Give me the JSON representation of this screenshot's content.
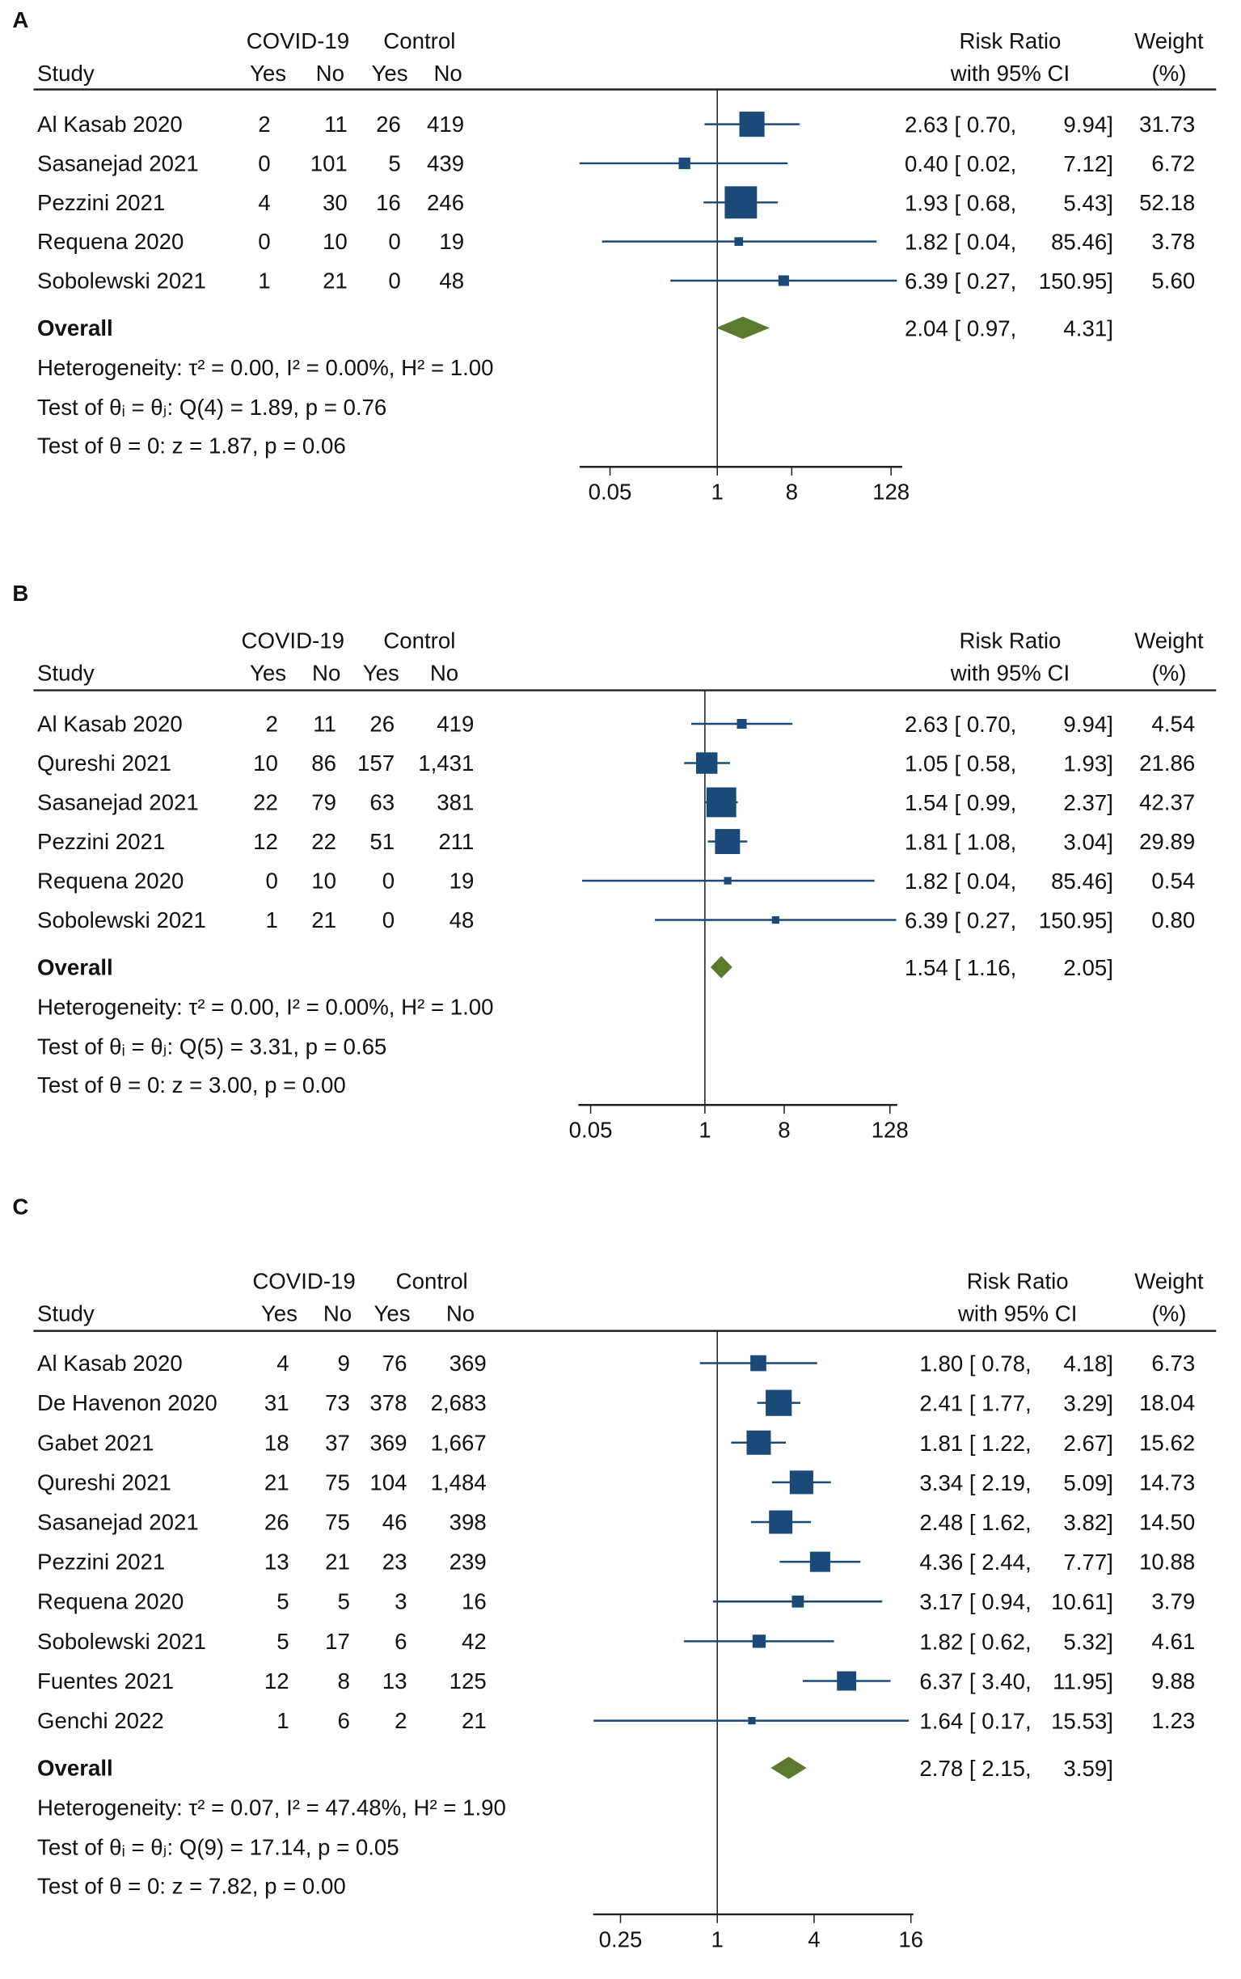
{
  "chart_data": [
    {
      "type": "forest",
      "panel_label": "A",
      "header": {
        "group1": "COVID-19",
        "group2": "Control",
        "study": "Study",
        "yes": "Yes",
        "no": "No",
        "rr1": "Risk Ratio",
        "rr2": "with 95% CI",
        "w1": "Weight",
        "w2": "(%)"
      },
      "studies": [
        {
          "name": "Al Kasab 2020",
          "cells": [
            "2",
            "11",
            "26",
            "419"
          ],
          "rr": "2.63",
          "lo": "0.70",
          "hi": "9.94",
          "weight": "31.73"
        },
        {
          "name": "Sasanejad 2021",
          "cells": [
            "0",
            "101",
            "5",
            "439"
          ],
          "rr": "0.40",
          "lo": "0.02",
          "hi": "7.12",
          "weight": "6.72"
        },
        {
          "name": "Pezzini 2021",
          "cells": [
            "4",
            "30",
            "16",
            "246"
          ],
          "rr": "1.93",
          "lo": "0.68",
          "hi": "5.43",
          "weight": "52.18"
        },
        {
          "name": "Requena 2020",
          "cells": [
            "0",
            "10",
            "0",
            "19"
          ],
          "rr": "1.82",
          "lo": "0.04",
          "hi": "85.46",
          "weight": "3.78"
        },
        {
          "name": "Sobolewski 2021",
          "cells": [
            "1",
            "21",
            "0",
            "48"
          ],
          "rr": "6.39",
          "lo": "0.27",
          "hi": "150.95",
          "weight": "5.60"
        }
      ],
      "overall": {
        "label": "Overall",
        "rr": "2.04",
        "lo": "0.97",
        "hi": "4.31"
      },
      "heterogeneity": "Heterogeneity: τ² = 0.00, I² = 0.00%, H² = 1.00",
      "test_homogeneity": "Test of θᵢ = θⱼ: Q(4) = 1.89, p = 0.76",
      "test_effect": "Test of θ = 0: z = 1.87, p = 0.06",
      "x_scale": "log",
      "x_ticks": [
        "0.05",
        "1",
        "8",
        "128"
      ]
    },
    {
      "type": "forest",
      "panel_label": "B",
      "header": {
        "group1": "COVID-19",
        "group2": "Control",
        "study": "Study",
        "yes": "Yes",
        "no": "No",
        "rr1": "Risk Ratio",
        "rr2": "with 95% CI",
        "w1": "Weight",
        "w2": "(%)"
      },
      "studies": [
        {
          "name": "Al Kasab 2020",
          "cells": [
            "2",
            "11",
            "26",
            "419"
          ],
          "rr": "2.63",
          "lo": "0.70",
          "hi": "9.94",
          "weight": "4.54"
        },
        {
          "name": "Qureshi 2021",
          "cells": [
            "10",
            "86",
            "157",
            "1,431"
          ],
          "rr": "1.05",
          "lo": "0.58",
          "hi": "1.93",
          "weight": "21.86"
        },
        {
          "name": "Sasanejad 2021",
          "cells": [
            "22",
            "79",
            "63",
            "381"
          ],
          "rr": "1.54",
          "lo": "0.99",
          "hi": "2.37",
          "weight": "42.37"
        },
        {
          "name": "Pezzini 2021",
          "cells": [
            "12",
            "22",
            "51",
            "211"
          ],
          "rr": "1.81",
          "lo": "1.08",
          "hi": "3.04",
          "weight": "29.89"
        },
        {
          "name": "Requena 2020",
          "cells": [
            "0",
            "10",
            "0",
            "19"
          ],
          "rr": "1.82",
          "lo": "0.04",
          "hi": "85.46",
          "weight": "0.54"
        },
        {
          "name": "Sobolewski 2021",
          "cells": [
            "1",
            "21",
            "0",
            "48"
          ],
          "rr": "6.39",
          "lo": "0.27",
          "hi": "150.95",
          "weight": "0.80"
        }
      ],
      "overall": {
        "label": "Overall",
        "rr": "1.54",
        "lo": "1.16",
        "hi": "2.05"
      },
      "heterogeneity": "Heterogeneity: τ² = 0.00, I² = 0.00%, H² = 1.00",
      "test_homogeneity": "Test of θᵢ = θⱼ: Q(5) = 3.31, p = 0.65",
      "test_effect": "Test of θ = 0: z = 3.00, p = 0.00",
      "x_scale": "log",
      "x_ticks": [
        "0.05",
        "1",
        "8",
        "128"
      ]
    },
    {
      "type": "forest",
      "panel_label": "C",
      "header": {
        "group1": "COVID-19",
        "group2": "Control",
        "study": "Study",
        "yes": "Yes",
        "no": "No",
        "rr1": "Risk Ratio",
        "rr2": "with 95% CI",
        "w1": "Weight",
        "w2": "(%)"
      },
      "studies": [
        {
          "name": "Al Kasab 2020",
          "cells": [
            "4",
            "9",
            "76",
            "369"
          ],
          "rr": "1.80",
          "lo": "0.78",
          "hi": "4.18",
          "weight": "6.73"
        },
        {
          "name": "De Havenon 2020",
          "cells": [
            "31",
            "73",
            "378",
            "2,683"
          ],
          "rr": "2.41",
          "lo": "1.77",
          "hi": "3.29",
          "weight": "18.04"
        },
        {
          "name": "Gabet 2021",
          "cells": [
            "18",
            "37",
            "369",
            "1,667"
          ],
          "rr": "1.81",
          "lo": "1.22",
          "hi": "2.67",
          "weight": "15.62"
        },
        {
          "name": "Qureshi 2021",
          "cells": [
            "21",
            "75",
            "104",
            "1,484"
          ],
          "rr": "3.34",
          "lo": "2.19",
          "hi": "5.09",
          "weight": "14.73"
        },
        {
          "name": "Sasanejad 2021",
          "cells": [
            "26",
            "75",
            "46",
            "398"
          ],
          "rr": "2.48",
          "lo": "1.62",
          "hi": "3.82",
          "weight": "14.50"
        },
        {
          "name": "Pezzini 2021",
          "cells": [
            "13",
            "21",
            "23",
            "239"
          ],
          "rr": "4.36",
          "lo": "2.44",
          "hi": "7.77",
          "weight": "10.88"
        },
        {
          "name": "Requena 2020",
          "cells": [
            "5",
            "5",
            "3",
            "16"
          ],
          "rr": "3.17",
          "lo": "0.94",
          "hi": "10.61",
          "weight": "3.79"
        },
        {
          "name": "Sobolewski 2021",
          "cells": [
            "5",
            "17",
            "6",
            "42"
          ],
          "rr": "1.82",
          "lo": "0.62",
          "hi": "5.32",
          "weight": "4.61"
        },
        {
          "name": "Fuentes 2021",
          "cells": [
            "12",
            "8",
            "13",
            "125"
          ],
          "rr": "6.37",
          "lo": "3.40",
          "hi": "11.95",
          "weight": "9.88"
        },
        {
          "name": "Genchi 2022",
          "cells": [
            "1",
            "6",
            "2",
            "21"
          ],
          "rr": "1.64",
          "lo": "0.17",
          "hi": "15.53",
          "weight": "1.23"
        }
      ],
      "overall": {
        "label": "Overall",
        "rr": "2.78",
        "lo": "2.15",
        "hi": "3.59"
      },
      "heterogeneity": "Heterogeneity: τ² = 0.07, I² = 47.48%, H² = 1.90",
      "test_homogeneity": "Test of θᵢ = θⱼ: Q(9) = 17.14, p = 0.05",
      "test_effect": "Test of θ = 0: z = 7.82, p = 0.00",
      "x_scale": "log",
      "x_ticks": [
        "0.25",
        "1",
        "4",
        "16"
      ]
    }
  ],
  "colors": {
    "marker": "#1b4a78",
    "diamond": "#5a7a2e",
    "line": "#222222"
  }
}
